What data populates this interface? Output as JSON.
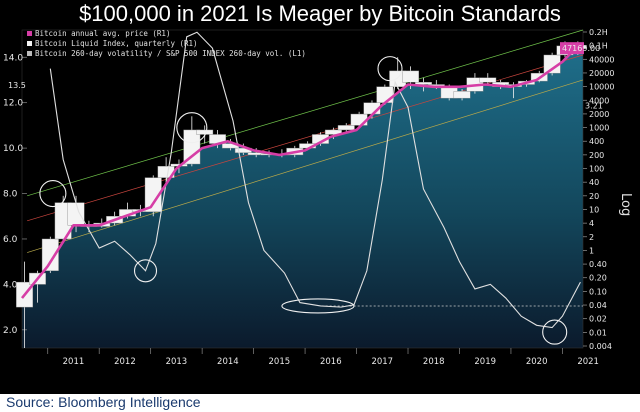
{
  "title": "$100,000 in 2021 Is Meager by Bitcoin Standards",
  "source": "Source: Bloomberg Intelligence",
  "chart_data": {
    "type": "line",
    "title": "$100,000 in 2021 Is Meager by Bitcoin Standards",
    "x_label": "",
    "x_ticks": [
      "2011",
      "2012",
      "2013",
      "2014",
      "2015",
      "2016",
      "2017",
      "2018",
      "2019",
      "2020",
      "2021"
    ],
    "x_range": [
      2010.5,
      2021.4
    ],
    "left_axis": {
      "label": "",
      "ticks": [
        "2.0",
        "4.0",
        "6.0",
        "8.0",
        "10.0",
        "12.0",
        "14.0"
      ],
      "range": [
        1.2,
        15.2
      ]
    },
    "right_axis": {
      "label": "Log",
      "scale": "log",
      "ticks": [
        "0.2H",
        "0.1H",
        "40000",
        "20000",
        "10000",
        "4000",
        "2000",
        "1000",
        "400",
        "200",
        "100",
        "40",
        "20",
        "10",
        "4",
        "2",
        "1",
        "0.40",
        "0.20",
        "0.10",
        "0.04",
        "0.02",
        "0.01",
        "0.004"
      ]
    },
    "legend": [
      "Bitcoin annual avg. price (R1)",
      "Bitcoin Liquid Index, quarterly (R1)",
      "Bitcoin 260-day volatility / S&P 500 INDEX 260-day vol. (L1)"
    ],
    "last_price_label": "47169.00",
    "price_axis_labels": [
      "3.21",
      "13.5"
    ],
    "candles_quarterly": [
      {
        "x": 2010.55,
        "o": 3.0,
        "h": 5.0,
        "l": 1.2,
        "c": 4.1
      },
      {
        "x": 2010.8,
        "o": 4.0,
        "h": 4.6,
        "l": 3.2,
        "c": 4.5
      },
      {
        "x": 2011.05,
        "o": 4.6,
        "h": 6.1,
        "l": 4.5,
        "c": 6.0
      },
      {
        "x": 2011.3,
        "o": 6.0,
        "h": 7.9,
        "l": 5.8,
        "c": 7.6
      },
      {
        "x": 2011.55,
        "o": 7.6,
        "h": 7.9,
        "l": 6.3,
        "c": 6.6
      },
      {
        "x": 2011.8,
        "o": 6.6,
        "h": 6.8,
        "l": 6.3,
        "c": 6.55
      },
      {
        "x": 2012.05,
        "o": 6.55,
        "h": 6.9,
        "l": 6.5,
        "c": 6.7
      },
      {
        "x": 2012.3,
        "o": 6.7,
        "h": 7.2,
        "l": 6.6,
        "c": 7.0
      },
      {
        "x": 2012.55,
        "o": 7.0,
        "h": 7.6,
        "l": 6.9,
        "c": 7.3
      },
      {
        "x": 2012.8,
        "o": 7.3,
        "h": 7.5,
        "l": 7.0,
        "c": 7.2
      },
      {
        "x": 2013.05,
        "o": 7.2,
        "h": 8.8,
        "l": 7.0,
        "c": 8.7
      },
      {
        "x": 2013.3,
        "o": 8.7,
        "h": 9.6,
        "l": 8.5,
        "c": 9.2
      },
      {
        "x": 2013.55,
        "o": 9.2,
        "h": 9.5,
        "l": 8.9,
        "c": 9.3
      },
      {
        "x": 2013.8,
        "o": 9.3,
        "h": 11.4,
        "l": 9.2,
        "c": 10.8
      },
      {
        "x": 2014.05,
        "o": 10.8,
        "h": 11.0,
        "l": 10.2,
        "c": 10.6
      },
      {
        "x": 2014.3,
        "o": 10.6,
        "h": 10.8,
        "l": 10.0,
        "c": 10.2
      },
      {
        "x": 2014.55,
        "o": 10.2,
        "h": 10.4,
        "l": 9.9,
        "c": 10.0
      },
      {
        "x": 2014.8,
        "o": 10.0,
        "h": 10.2,
        "l": 9.7,
        "c": 9.8
      },
      {
        "x": 2015.05,
        "o": 9.8,
        "h": 10.0,
        "l": 9.6,
        "c": 9.7
      },
      {
        "x": 2015.3,
        "o": 9.7,
        "h": 9.9,
        "l": 9.6,
        "c": 9.75
      },
      {
        "x": 2015.55,
        "o": 9.75,
        "h": 9.95,
        "l": 9.6,
        "c": 9.7
      },
      {
        "x": 2015.8,
        "o": 9.7,
        "h": 10.1,
        "l": 9.6,
        "c": 10.0
      },
      {
        "x": 2016.05,
        "o": 10.0,
        "h": 10.3,
        "l": 9.9,
        "c": 10.2
      },
      {
        "x": 2016.3,
        "o": 10.2,
        "h": 10.7,
        "l": 10.1,
        "c": 10.6
      },
      {
        "x": 2016.55,
        "o": 10.6,
        "h": 10.9,
        "l": 10.4,
        "c": 10.8
      },
      {
        "x": 2016.8,
        "o": 10.8,
        "h": 11.1,
        "l": 10.7,
        "c": 11.0
      },
      {
        "x": 2017.05,
        "o": 11.0,
        "h": 11.6,
        "l": 10.9,
        "c": 11.5
      },
      {
        "x": 2017.3,
        "o": 11.5,
        "h": 12.1,
        "l": 11.3,
        "c": 12.0
      },
      {
        "x": 2017.55,
        "o": 12.0,
        "h": 12.8,
        "l": 11.9,
        "c": 12.7
      },
      {
        "x": 2017.8,
        "o": 12.7,
        "h": 14.0,
        "l": 12.6,
        "c": 13.4
      },
      {
        "x": 2018.05,
        "o": 13.4,
        "h": 13.6,
        "l": 12.6,
        "c": 12.9
      },
      {
        "x": 2018.3,
        "o": 12.9,
        "h": 13.1,
        "l": 12.5,
        "c": 12.8
      },
      {
        "x": 2018.55,
        "o": 12.8,
        "h": 13.0,
        "l": 12.6,
        "c": 12.7
      },
      {
        "x": 2018.8,
        "o": 12.7,
        "h": 12.8,
        "l": 12.1,
        "c": 12.2
      },
      {
        "x": 2019.05,
        "o": 12.2,
        "h": 12.6,
        "l": 12.1,
        "c": 12.5
      },
      {
        "x": 2019.3,
        "o": 12.5,
        "h": 13.3,
        "l": 12.4,
        "c": 13.1
      },
      {
        "x": 2019.55,
        "o": 13.1,
        "h": 13.3,
        "l": 12.8,
        "c": 12.9
      },
      {
        "x": 2019.8,
        "o": 12.9,
        "h": 13.0,
        "l": 12.6,
        "c": 12.7
      },
      {
        "x": 2020.05,
        "o": 12.7,
        "h": 12.9,
        "l": 12.2,
        "c": 12.8
      },
      {
        "x": 2020.3,
        "o": 12.8,
        "h": 13.0,
        "l": 12.7,
        "c": 12.95
      },
      {
        "x": 2020.55,
        "o": 12.95,
        "h": 13.4,
        "l": 12.9,
        "c": 13.3
      },
      {
        "x": 2020.8,
        "o": 13.3,
        "h": 14.2,
        "l": 13.2,
        "c": 14.1
      },
      {
        "x": 2021.05,
        "o": 14.1,
        "h": 14.7,
        "l": 14.0,
        "c": 14.5
      },
      {
        "x": 2021.3,
        "o": 14.5,
        "h": 14.7,
        "l": 14.1,
        "c": 14.4
      }
    ],
    "annual_avg_price": [
      {
        "x": 2010.5,
        "y": 3.4
      },
      {
        "x": 2011.0,
        "y": 4.8
      },
      {
        "x": 2011.5,
        "y": 6.6
      },
      {
        "x": 2012.0,
        "y": 6.6
      },
      {
        "x": 2012.5,
        "y": 7.0
      },
      {
        "x": 2013.0,
        "y": 7.4
      },
      {
        "x": 2013.5,
        "y": 9.1
      },
      {
        "x": 2014.0,
        "y": 10.0
      },
      {
        "x": 2014.5,
        "y": 10.3
      },
      {
        "x": 2015.0,
        "y": 9.9
      },
      {
        "x": 2015.5,
        "y": 9.7
      },
      {
        "x": 2016.0,
        "y": 9.9
      },
      {
        "x": 2016.5,
        "y": 10.5
      },
      {
        "x": 2017.0,
        "y": 10.8
      },
      {
        "x": 2017.5,
        "y": 11.9
      },
      {
        "x": 2018.0,
        "y": 12.8
      },
      {
        "x": 2018.5,
        "y": 12.7
      },
      {
        "x": 2019.0,
        "y": 12.7
      },
      {
        "x": 2019.5,
        "y": 12.8
      },
      {
        "x": 2020.0,
        "y": 12.7
      },
      {
        "x": 2020.5,
        "y": 13.0
      },
      {
        "x": 2021.0,
        "y": 13.8
      },
      {
        "x": 2021.3,
        "y": 14.5
      }
    ],
    "volatility_ratio": [
      {
        "x": 2011.05,
        "y": 13.5
      },
      {
        "x": 2011.3,
        "y": 9.5
      },
      {
        "x": 2011.6,
        "y": 7.2
      },
      {
        "x": 2012.0,
        "y": 5.6
      },
      {
        "x": 2012.3,
        "y": 5.9
      },
      {
        "x": 2012.6,
        "y": 5.3
      },
      {
        "x": 2012.9,
        "y": 4.6
      },
      {
        "x": 2013.1,
        "y": 5.8
      },
      {
        "x": 2013.4,
        "y": 9.8
      },
      {
        "x": 2013.7,
        "y": 14.9
      },
      {
        "x": 2013.9,
        "y": 15.1
      },
      {
        "x": 2014.2,
        "y": 14.4
      },
      {
        "x": 2014.6,
        "y": 11.2
      },
      {
        "x": 2014.9,
        "y": 7.6
      },
      {
        "x": 2015.2,
        "y": 5.5
      },
      {
        "x": 2015.6,
        "y": 4.5
      },
      {
        "x": 2015.9,
        "y": 3.2
      },
      {
        "x": 2016.3,
        "y": 3.05
      },
      {
        "x": 2016.7,
        "y": 3.0
      },
      {
        "x": 2016.95,
        "y": 3.1
      },
      {
        "x": 2017.2,
        "y": 4.6
      },
      {
        "x": 2017.5,
        "y": 8.6
      },
      {
        "x": 2017.75,
        "y": 12.9
      },
      {
        "x": 2018.0,
        "y": 11.8
      },
      {
        "x": 2018.3,
        "y": 8.2
      },
      {
        "x": 2018.7,
        "y": 6.5
      },
      {
        "x": 2019.0,
        "y": 5.0
      },
      {
        "x": 2019.3,
        "y": 3.8
      },
      {
        "x": 2019.6,
        "y": 4.0
      },
      {
        "x": 2019.9,
        "y": 3.4
      },
      {
        "x": 2020.2,
        "y": 2.6
      },
      {
        "x": 2020.5,
        "y": 2.2
      },
      {
        "x": 2020.8,
        "y": 2.1
      },
      {
        "x": 2021.0,
        "y": 2.6
      },
      {
        "x": 2021.35,
        "y": 4.1
      }
    ],
    "reference_line_y": 3.05
  }
}
